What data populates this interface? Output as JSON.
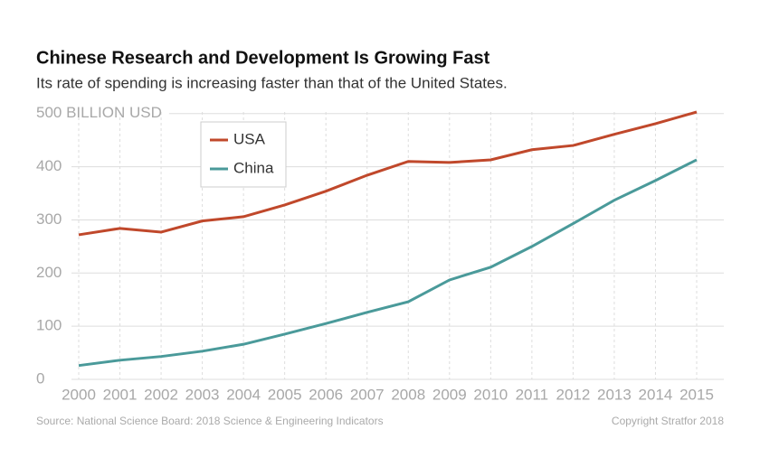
{
  "chart_data": {
    "type": "line",
    "title": "Chinese Research and Development Is Growing Fast",
    "subtitle": "Its rate of spending is increasing faster than that of the United States.",
    "source": "Source: National Science Board: 2018 Science & Engineering Indicators",
    "copyright": "Copyright Stratfor 2018",
    "categories": [
      "2000",
      "2001",
      "2002",
      "2003",
      "2004",
      "2005",
      "2006",
      "2007",
      "2008",
      "2009",
      "2010",
      "2011",
      "2012",
      "2013",
      "2014",
      "2015"
    ],
    "series": [
      {
        "name": "USA",
        "color": "#c0482b",
        "values": [
          272,
          284,
          277,
          298,
          306,
          328,
          354,
          384,
          410,
          408,
          413,
          432,
          440,
          461,
          481,
          503
        ]
      },
      {
        "name": "China",
        "color": "#4a9a9a",
        "values": [
          26,
          36,
          43,
          53,
          66,
          85,
          105,
          126,
          146,
          187,
          211,
          250,
          293,
          337,
          374,
          413
        ]
      }
    ],
    "ylim": [
      0,
      503
    ],
    "yticks": [
      0,
      100,
      200,
      300,
      400,
      {
        "value": 500,
        "label": "500 BILLION USD"
      }
    ],
    "grid": true,
    "legend": "top-left"
  }
}
